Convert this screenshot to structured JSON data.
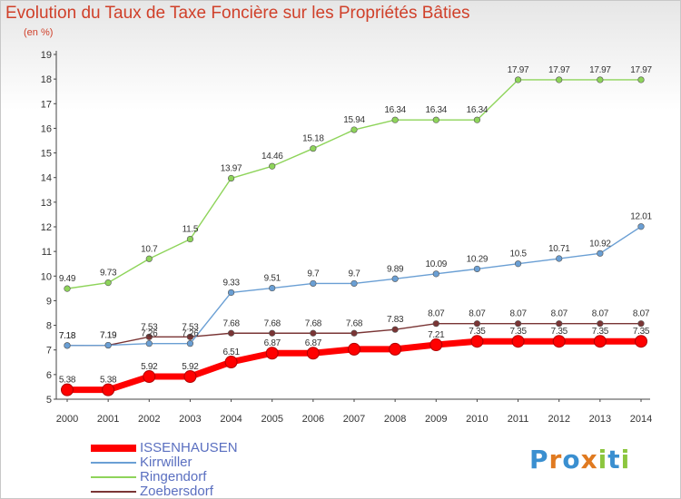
{
  "title": "Evolution du Taux de Taxe Foncière sur les Propriétés Bâties",
  "unit": "(en %)",
  "logo": {
    "text": "Proxiti",
    "colors": [
      "#3a8fd0",
      "#e07a20",
      "#8cc63e"
    ]
  },
  "chart_data": {
    "type": "line",
    "title": "Evolution du Taux de Taxe Foncière sur les Propriétés Bâties",
    "ylabel": "(en %)",
    "xlabel": "",
    "x": [
      2000,
      2001,
      2002,
      2003,
      2004,
      2005,
      2006,
      2007,
      2008,
      2009,
      2010,
      2011,
      2012,
      2013,
      2014
    ],
    "ylim": [
      5,
      19
    ],
    "yticks": [
      5,
      6,
      7,
      8,
      9,
      10,
      11,
      12,
      13,
      14,
      15,
      16,
      17,
      18,
      19
    ],
    "grid": false,
    "legend_position": "bottom-left",
    "series": [
      {
        "name": "ISSENHAUSEN",
        "color": "#ff0000",
        "values": [
          5.38,
          5.38,
          5.92,
          5.92,
          6.51,
          6.87,
          6.87,
          7.03,
          7.03,
          7.21,
          7.35,
          7.35,
          7.35,
          7.35,
          7.35
        ],
        "labels": [
          "5.38",
          "5.38",
          "5.92",
          "5.92",
          "6.51",
          "6.87",
          "6.87",
          "",
          "",
          "7.21",
          "7.35",
          "7.35",
          "7.35",
          "7.35",
          "7.35"
        ]
      },
      {
        "name": "Kirrwiller",
        "color": "#6a9fd4",
        "values": [
          7.18,
          7.19,
          7.26,
          7.26,
          9.33,
          9.51,
          9.7,
          9.7,
          9.89,
          10.09,
          10.29,
          10.5,
          10.71,
          10.92,
          12.01
        ],
        "labels": [
          "7.18",
          "7.19",
          "7.26",
          "7.26",
          "9.33",
          "9.51",
          "9.7",
          "9.7",
          "9.89",
          "10.09",
          "10.29",
          "10.5",
          "10.71",
          "10.92",
          "12.01"
        ]
      },
      {
        "name": "Ringendorf",
        "color": "#8ed45a",
        "values": [
          9.49,
          9.73,
          10.7,
          11.5,
          13.97,
          14.46,
          15.18,
          15.94,
          16.34,
          16.34,
          16.34,
          17.97,
          17.97,
          17.97,
          17.97
        ],
        "labels": [
          "9.49",
          "9.73",
          "10.7",
          "11.5",
          "13.97",
          "14.46",
          "15.18",
          "15.94",
          "16.34",
          "16.34",
          "16.34",
          "17.97",
          "17.97",
          "17.97",
          "17.97"
        ]
      },
      {
        "name": "Zoebersdorf",
        "color": "#7a3535",
        "values": [
          7.18,
          7.19,
          7.53,
          7.53,
          7.68,
          7.68,
          7.68,
          7.68,
          7.83,
          8.07,
          8.07,
          8.07,
          8.07,
          8.07,
          8.07
        ],
        "labels": [
          "7.18",
          "7.19",
          "7.53",
          "7.53",
          "7.68",
          "7.68",
          "7.68",
          "7.68",
          "7.83",
          "8.07",
          "8.07",
          "8.07",
          "8.07",
          "8.07",
          "8.07"
        ]
      }
    ]
  }
}
